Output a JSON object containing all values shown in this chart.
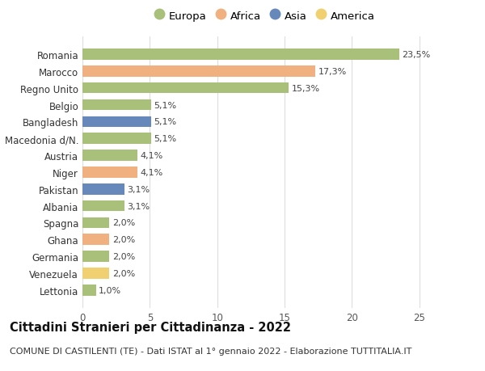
{
  "categories": [
    "Lettonia",
    "Venezuela",
    "Germania",
    "Ghana",
    "Spagna",
    "Albania",
    "Pakistan",
    "Niger",
    "Austria",
    "Macedonia d/N.",
    "Bangladesh",
    "Belgio",
    "Regno Unito",
    "Marocco",
    "Romania"
  ],
  "values": [
    1.0,
    2.0,
    2.0,
    2.0,
    2.0,
    3.1,
    3.1,
    4.1,
    4.1,
    5.1,
    5.1,
    5.1,
    15.3,
    17.3,
    23.5
  ],
  "labels": [
    "1,0%",
    "2,0%",
    "2,0%",
    "2,0%",
    "2,0%",
    "3,1%",
    "3,1%",
    "4,1%",
    "4,1%",
    "5,1%",
    "5,1%",
    "5,1%",
    "15,3%",
    "17,3%",
    "23,5%"
  ],
  "continents": [
    "Europa",
    "America",
    "Europa",
    "Africa",
    "Europa",
    "Europa",
    "Asia",
    "Africa",
    "Europa",
    "Europa",
    "Asia",
    "Europa",
    "Europa",
    "Africa",
    "Europa"
  ],
  "colors": {
    "Europa": "#a8c07a",
    "Africa": "#f0b080",
    "Asia": "#6688bb",
    "America": "#f0d070"
  },
  "legend_order": [
    "Europa",
    "Africa",
    "Asia",
    "America"
  ],
  "title": "Cittadini Stranieri per Cittadinanza - 2022",
  "subtitle": "COMUNE DI CASTILENTI (TE) - Dati ISTAT al 1° gennaio 2022 - Elaborazione TUTTITALIA.IT",
  "xlim": [
    0,
    27
  ],
  "xticks": [
    0,
    5,
    10,
    15,
    20,
    25
  ],
  "background_color": "#ffffff",
  "grid_color": "#dddddd",
  "bar_height": 0.65,
  "label_fontsize": 8,
  "tick_fontsize": 8.5,
  "title_fontsize": 10.5,
  "subtitle_fontsize": 8
}
